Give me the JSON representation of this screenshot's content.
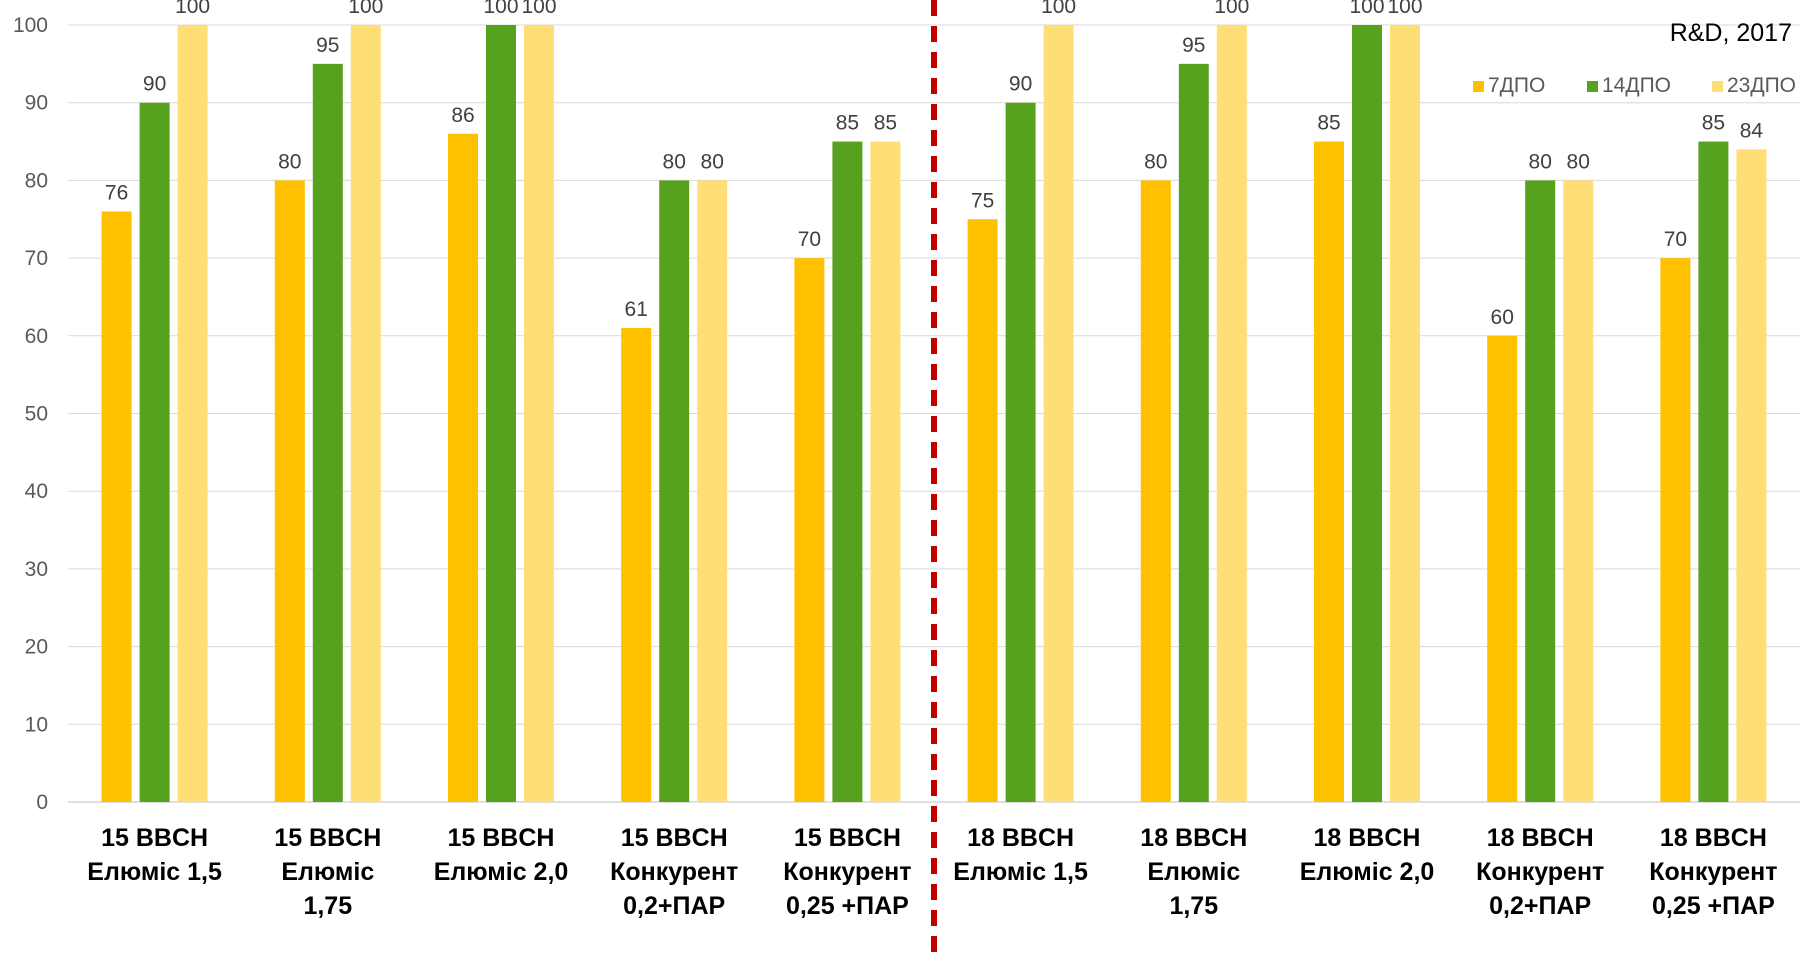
{
  "chart_data": {
    "type": "bar",
    "note": "R&D, 2017",
    "categories": [
      [
        "15 BBCH",
        "Елюміс 1,5"
      ],
      [
        "15 BBCH",
        "Елюміс",
        "1,75"
      ],
      [
        "15 BBCH",
        "Елюміс 2,0"
      ],
      [
        "15 BBCH",
        "Конкурент",
        "0,2+ПАР"
      ],
      [
        "15 BBCH",
        "Конкурент",
        "0,25 +ПАР"
      ],
      [
        "18 BBCH",
        "Елюміс 1,5"
      ],
      [
        "18 BBCH",
        "Елюміс",
        "1,75"
      ],
      [
        "18 BBCH",
        "Елюміс 2,0"
      ],
      [
        "18 BBCH",
        "Конкурент",
        "0,2+ПАР"
      ],
      [
        "18 BBCH",
        "Конкурент",
        "0,25 +ПАР"
      ]
    ],
    "series": [
      {
        "name": "7ДПО",
        "color": "#FFC000",
        "values": [
          76,
          80,
          86,
          61,
          70,
          75,
          80,
          85,
          60,
          70
        ]
      },
      {
        "name": "14ДПО",
        "color": "#56A21E",
        "values": [
          90,
          95,
          100,
          80,
          85,
          90,
          95,
          100,
          80,
          85
        ]
      },
      {
        "name": "23ДПО",
        "color": "#FFDE75",
        "values": [
          100,
          100,
          100,
          80,
          85,
          100,
          100,
          100,
          80,
          84
        ]
      }
    ],
    "ylim": [
      0,
      100
    ],
    "yticks": [
      0,
      10,
      20,
      30,
      40,
      50,
      60,
      70,
      80,
      90,
      100
    ],
    "grid": true,
    "legend_position": "top-right",
    "divider": {
      "after_category_index": 4,
      "color": "#C00000",
      "style": "dashed"
    }
  }
}
